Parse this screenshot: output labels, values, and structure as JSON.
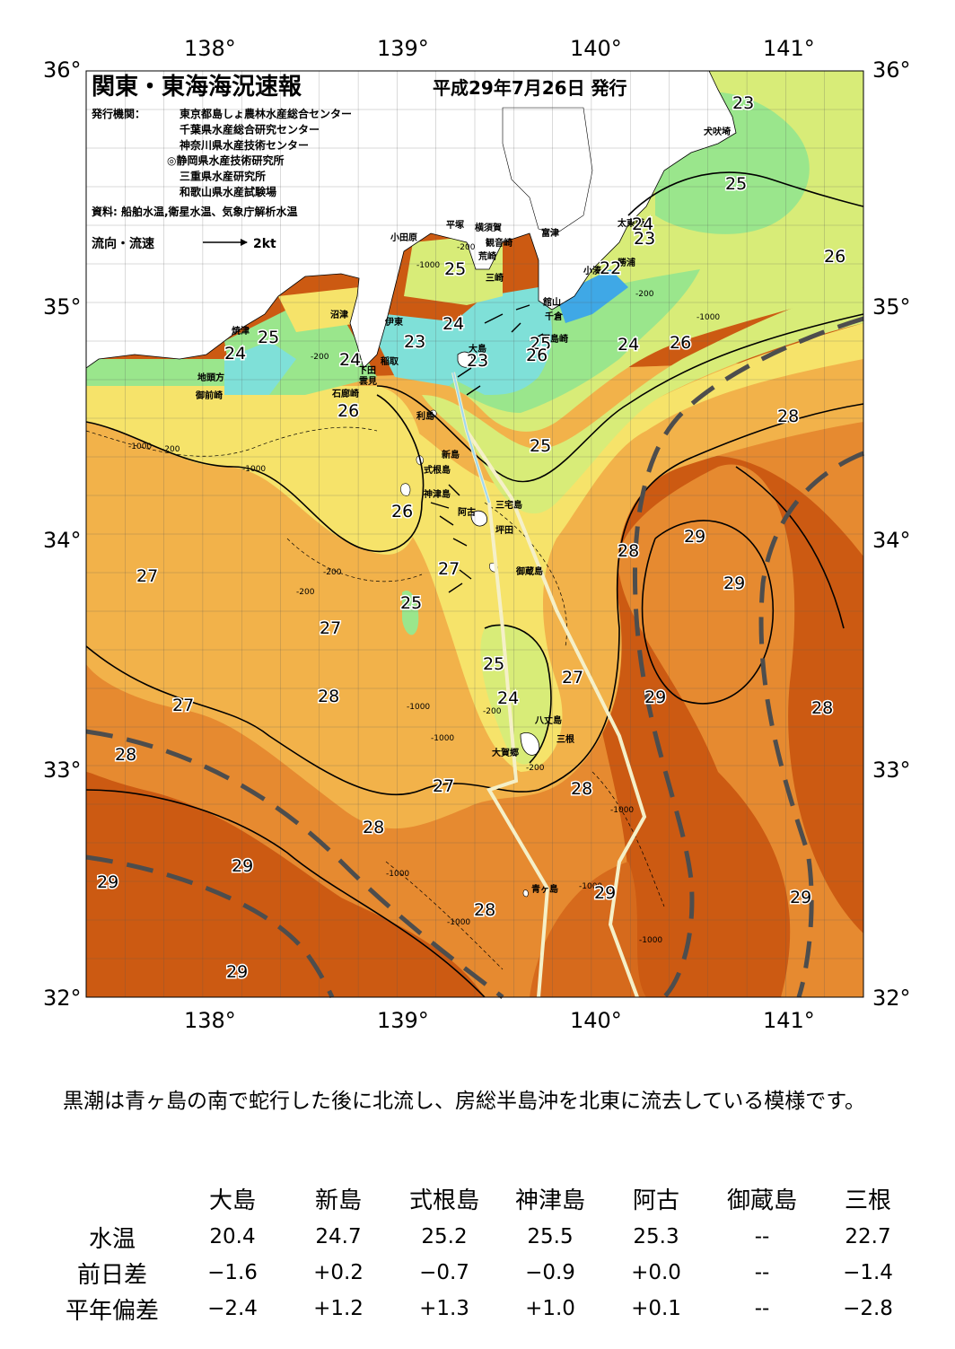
{
  "map": {
    "title": "関東・東海海況速報",
    "issue_date": "平成29年7月26日 発行",
    "agencies_label": "発行機関：",
    "agencies": [
      "東京都島しょ農林水産総合センター",
      "千葉県水産総合研究センター",
      "神奈川県水産技術センター",
      "◎静岡県水産技術研究所",
      "三重県水産研究所",
      "和歌山県水産試験場"
    ],
    "source": "資料: 船舶水温,衛星水温、気象庁解析水温",
    "current_legend": "流向・流速",
    "current_scale": "2kt",
    "lon_labels": [
      "138°",
      "139°",
      "140°",
      "141°"
    ],
    "lat_labels": [
      "36°",
      "35°",
      "34°",
      "33°",
      "32°"
    ],
    "colors": {
      "sst_22": "#3fa8e6",
      "sst_23": "#7fe0d8",
      "sst_24": "#9ae68c",
      "sst_25": "#d8ec78",
      "sst_26": "#f6e36a",
      "sst_27": "#f2b24a",
      "sst_28": "#e68a30",
      "sst_29": "#cc5a12",
      "land": "#ffffff",
      "kuroshio_axis": "#4d4d4d",
      "current_path": "#f5f0c8"
    },
    "place_names": [
      "小田原",
      "平塚",
      "横須賀",
      "観音崎",
      "富津",
      "荒崎",
      "三崎",
      "館山",
      "千倉",
      "野島崎",
      "勝浦",
      "小湊",
      "太東崎",
      "犬吠埼",
      "沼津",
      "伊東",
      "焼津",
      "稲取",
      "下田",
      "雲見",
      "石廊崎",
      "地頭方",
      "御前崎",
      "大島",
      "利島",
      "新島",
      "式根島",
      "神津島",
      "三宅島",
      "坪田",
      "阿古",
      "御蔵島",
      "八丈島",
      "三根",
      "大賀郷",
      "青ヶ島"
    ],
    "isotherm_labels": [
      "23",
      "25",
      "24",
      "23",
      "22",
      "26",
      "25",
      "25",
      "24",
      "23",
      "24",
      "24",
      "26",
      "24",
      "25",
      "26",
      "23",
      "26",
      "26",
      "25",
      "28",
      "29",
      "29",
      "28",
      "27",
      "27",
      "25",
      "27",
      "25",
      "27",
      "24",
      "29",
      "28",
      "27",
      "28",
      "28",
      "27",
      "28",
      "28",
      "29",
      "29",
      "29",
      "29",
      "28",
      "29"
    ],
    "depth_labels": [
      "-200",
      "-1000",
      "-200",
      "-1000",
      "-200",
      "-200",
      "-1000",
      "-1000",
      "-200",
      "-200",
      "-1000",
      "-1000",
      "-200",
      "-1000",
      "-1000",
      "-1000",
      "-1000",
      "-1000",
      "-200"
    ]
  },
  "summary": "黒潮は青ヶ島の南で蛇行した後に北流し、房総半島沖を北東に流去している模様です。",
  "table": {
    "stations": [
      "大島",
      "新島",
      "式根島",
      "神津島",
      "阿古",
      "御蔵島",
      "三根"
    ],
    "rows": [
      {
        "label": "水温",
        "values": [
          "20.4",
          "24.7",
          "25.2",
          "25.5",
          "25.3",
          "--",
          "22.7"
        ]
      },
      {
        "label": "前日差",
        "values": [
          "−1.6",
          "+0.2",
          "−0.7",
          "−0.9",
          "+0.0",
          "--",
          "−1.4"
        ]
      },
      {
        "label": "平年偏差",
        "values": [
          "−2.4",
          "+1.2",
          "+1.3",
          "+1.0",
          "+0.1",
          "--",
          "−2.8"
        ]
      }
    ]
  }
}
